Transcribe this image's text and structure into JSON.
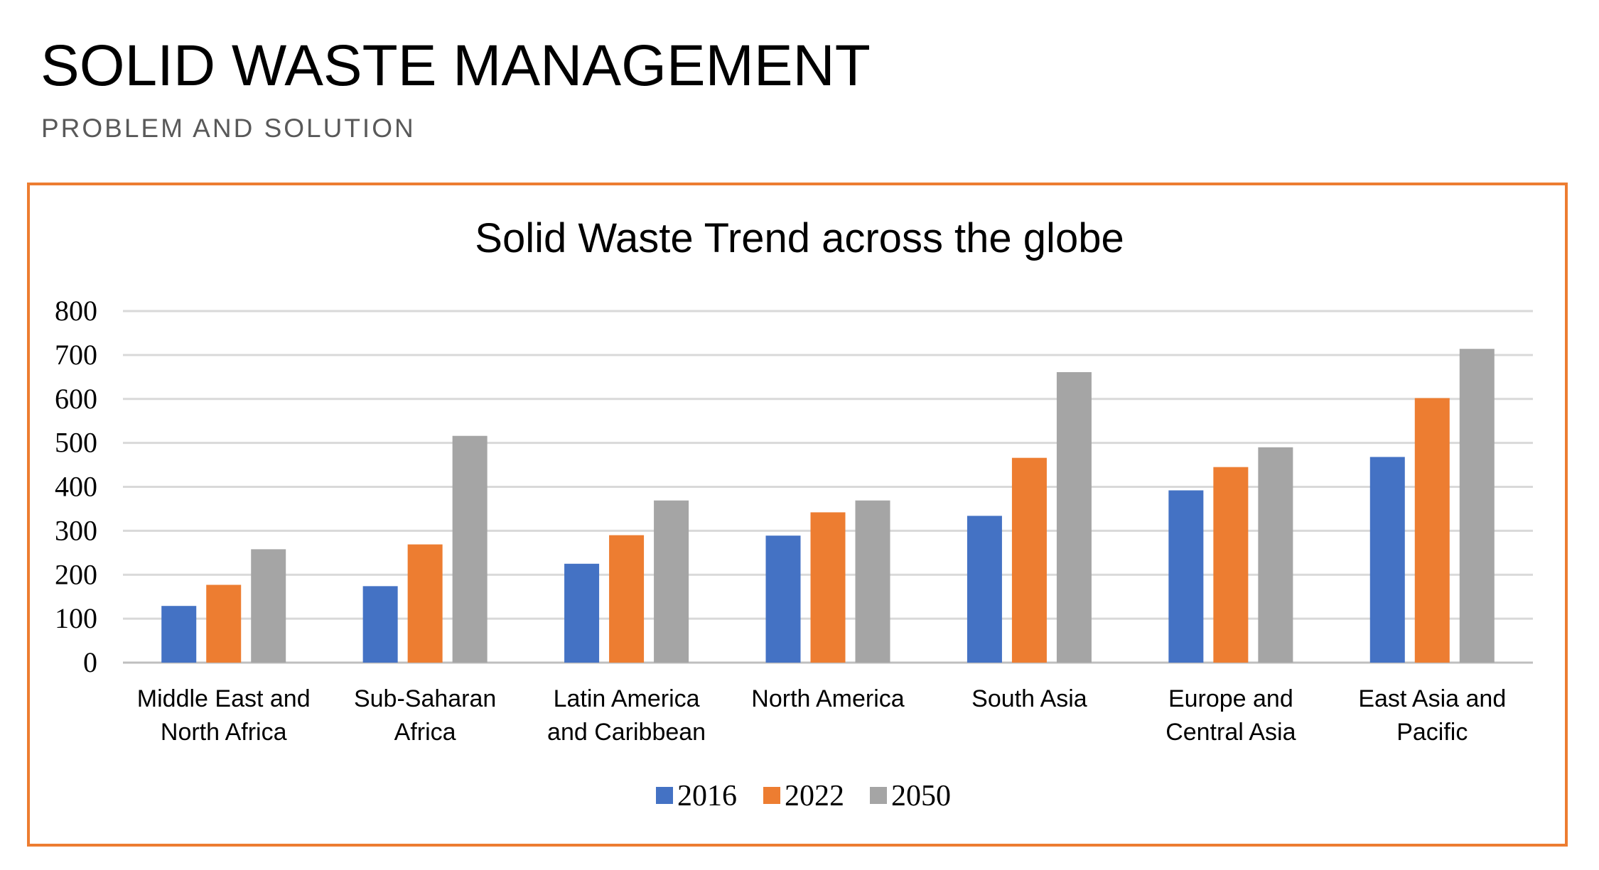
{
  "slide": {
    "title": "SOLID WASTE MANAGEMENT",
    "subtitle": "PROBLEM AND SOLUTION"
  },
  "chart_data": {
    "type": "bar",
    "title": "Solid Waste Trend across the globe",
    "xlabel": "",
    "ylabel": "",
    "ylim": [
      0,
      800
    ],
    "yticks": [
      0,
      100,
      200,
      300,
      400,
      500,
      600,
      700,
      800
    ],
    "grid": true,
    "legend_position": "bottom",
    "categories": [
      [
        "Middle East and",
        "North Africa"
      ],
      [
        "Sub-Saharan",
        "Africa"
      ],
      [
        "Latin America",
        "and Caribbean"
      ],
      [
        "North America"
      ],
      [
        "South Asia"
      ],
      [
        "Europe and",
        "Central Asia"
      ],
      [
        "East Asia and",
        "Pacific"
      ]
    ],
    "series": [
      {
        "name": "2016",
        "color": "#4472C4",
        "values": [
          129,
          174,
          225,
          289,
          334,
          392,
          468
        ]
      },
      {
        "name": "2022",
        "color": "#ED7D31",
        "values": [
          177,
          269,
          290,
          342,
          466,
          445,
          602
        ]
      },
      {
        "name": "2050",
        "color": "#A5A5A5",
        "values": [
          258,
          516,
          369,
          369,
          661,
          490,
          714
        ]
      }
    ]
  }
}
